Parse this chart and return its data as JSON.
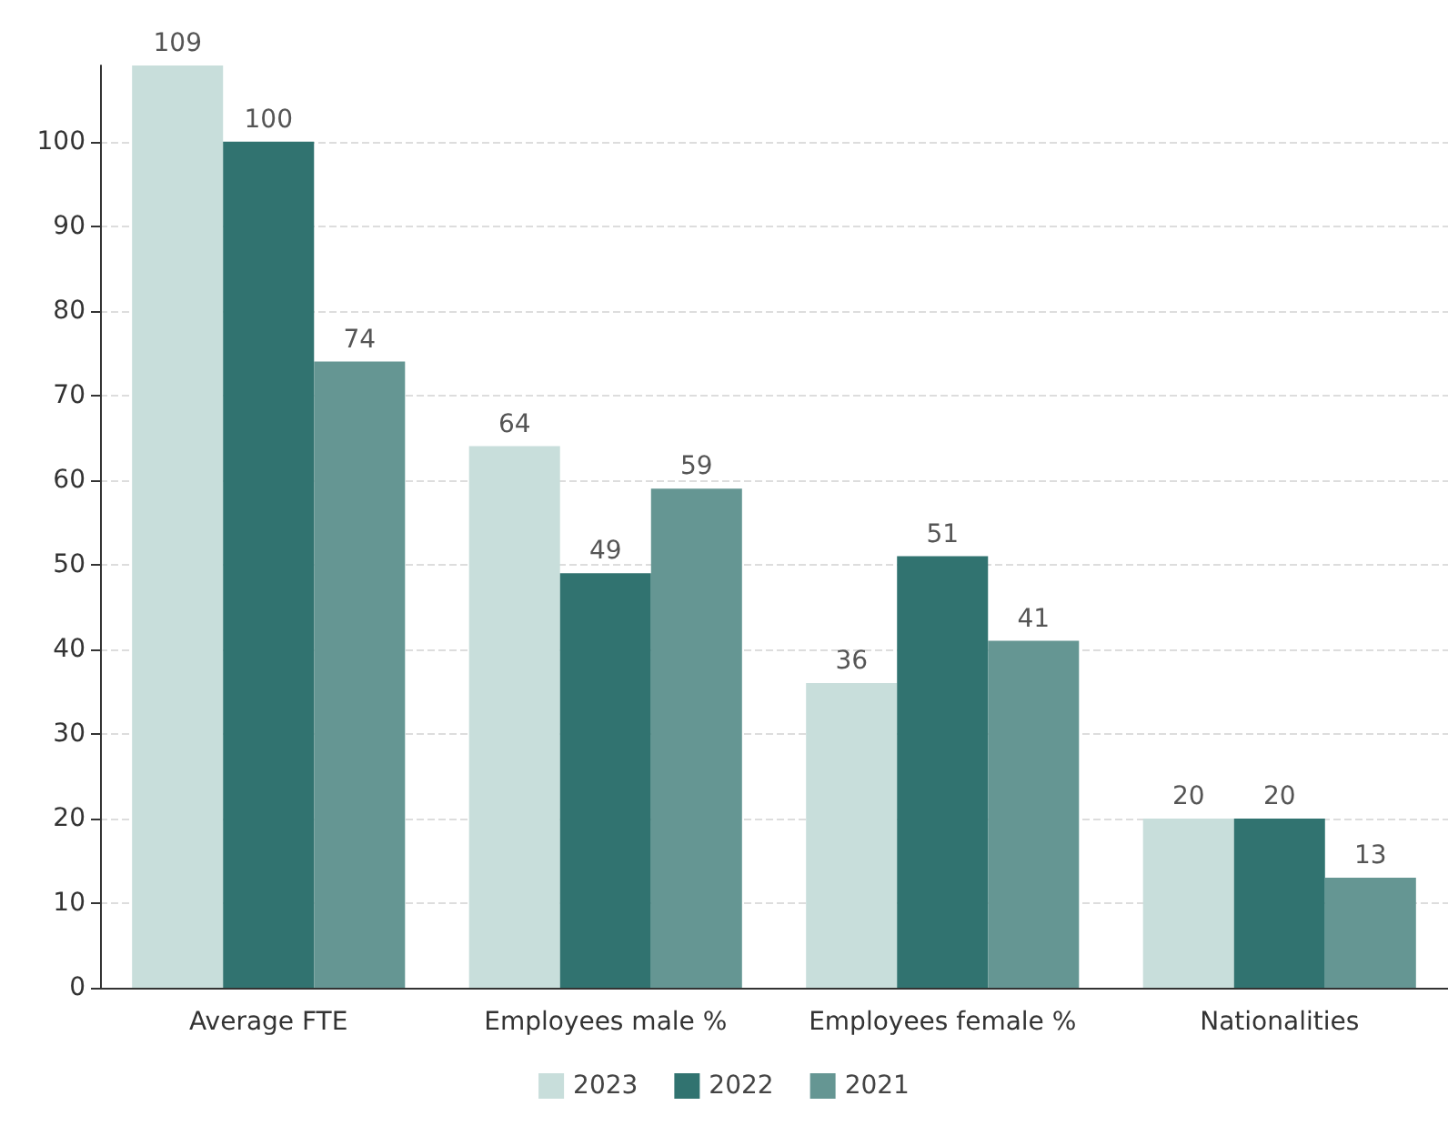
{
  "chart_data": {
    "type": "bar",
    "categories": [
      "Average FTE",
      "Employees male %",
      "Employees female %",
      "Nationalities"
    ],
    "series": [
      {
        "name": "2023",
        "color": "#c8dedb",
        "values": [
          109,
          64,
          36,
          20
        ]
      },
      {
        "name": "2022",
        "color": "#317370",
        "values": [
          100,
          49,
          51,
          20
        ]
      },
      {
        "name": "2021",
        "color": "#659693",
        "values": [
          74,
          59,
          41,
          13
        ]
      }
    ],
    "ylim": [
      0,
      109
    ],
    "yticks": [
      0,
      10,
      20,
      30,
      40,
      50,
      60,
      70,
      80,
      90,
      100
    ],
    "grid": "y",
    "legend": "bottom",
    "data_labels": true
  }
}
